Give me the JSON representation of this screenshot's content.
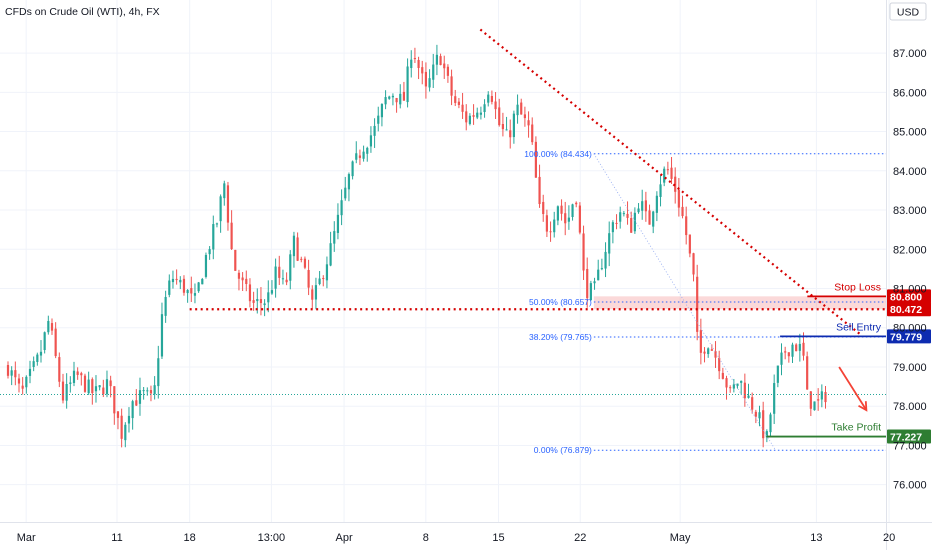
{
  "chart_data": {
    "type": "candlestick",
    "title": "CFDs on Crude Oil (WTI), 4h, FX",
    "currency": "USD",
    "ylim": [
      75.1,
      88.2
    ],
    "y_ticks": [
      "76.000",
      "77.000",
      "78.000",
      "79.000",
      "80.000",
      "81.000",
      "82.000",
      "83.000",
      "84.000",
      "85.000",
      "86.000",
      "87.000"
    ],
    "x_ticks": [
      "Mar",
      "11",
      "18",
      "13:00",
      "Apr",
      "8",
      "15",
      "22",
      "May",
      "13",
      "20"
    ],
    "x_range": [
      0,
      96
    ],
    "x_tick_positions": [
      2,
      12,
      20,
      29,
      37,
      46,
      54,
      63,
      74,
      89,
      97
    ],
    "trend_line": {
      "from": [
        52,
        87.6
      ],
      "to": [
        94,
        79.8
      ]
    },
    "support_line": {
      "from": [
        20,
        80.472
      ],
      "to": [
        100.5,
        80.472
      ]
    },
    "zone": {
      "low": 80.472,
      "high": 80.8
    },
    "fib_levels": [
      {
        "label": "100.00% (84.434)",
        "price": 84.434,
        "from": 64.5
      },
      {
        "label": "50.00% (80.657)",
        "price": 80.657,
        "from": 64.5
      },
      {
        "label": "38.20% (79.765)",
        "price": 79.765,
        "from": 64.5
      },
      {
        "label": "0.00% (76.879)",
        "price": 76.879,
        "from": 64.5
      }
    ],
    "levels": [
      {
        "name": "Stop Loss",
        "price": 80.8,
        "tag": "80.800",
        "color": "#d50000",
        "from": 88
      },
      {
        "name": "",
        "price": 80.472,
        "tag": "80.472",
        "color": "#d50000",
        "from": 100.5
      },
      {
        "name": "Sell Entry",
        "price": 79.779,
        "tag": "79.779",
        "color": "#0d2bb0",
        "from": 85
      },
      {
        "name": "Take Profit",
        "price": 77.227,
        "tag": "77.227",
        "color": "#2e7d32",
        "from": 83.5
      }
    ],
    "current_price": 78.3,
    "arrow": {
      "from": [
        91.5,
        79.0
      ],
      "to": [
        94.5,
        77.9
      ]
    },
    "waypoints": [
      [
        0,
        79.0
      ],
      [
        1.5,
        78.3
      ],
      [
        3.5,
        79.3
      ],
      [
        4.5,
        80.2
      ],
      [
        6,
        78.2
      ],
      [
        7.5,
        78.8
      ],
      [
        9.5,
        78.3
      ],
      [
        11,
        78.6
      ],
      [
        12.5,
        77.3
      ],
      [
        13.5,
        78.1
      ],
      [
        15,
        78.3
      ],
      [
        16,
        78.1
      ],
      [
        17,
        80.4
      ],
      [
        18,
        81.3
      ],
      [
        19.5,
        81.0
      ],
      [
        20.5,
        80.6
      ],
      [
        22,
        82.0
      ],
      [
        23,
        82.7
      ],
      [
        23.8,
        83.7
      ],
      [
        24.8,
        81.6
      ],
      [
        26,
        81.0
      ],
      [
        27,
        80.6
      ],
      [
        28.5,
        80.7
      ],
      [
        29.5,
        81.4
      ],
      [
        30.5,
        81.0
      ],
      [
        31.5,
        82.2
      ],
      [
        32.5,
        81.5
      ],
      [
        33.5,
        80.6
      ],
      [
        34.5,
        81.3
      ],
      [
        35.5,
        82.0
      ],
      [
        36.5,
        82.9
      ],
      [
        37.5,
        83.8
      ],
      [
        39,
        84.6
      ],
      [
        40.5,
        85.1
      ],
      [
        41.5,
        85.8
      ],
      [
        42.5,
        86.0
      ],
      [
        43.5,
        85.7
      ],
      [
        44.5,
        87.2
      ],
      [
        46,
        86.0
      ],
      [
        47.5,
        87.0
      ],
      [
        49,
        85.8
      ],
      [
        50.5,
        85.3
      ],
      [
        52,
        85.6
      ],
      [
        53,
        86.2
      ],
      [
        54,
        85.2
      ],
      [
        55,
        84.8
      ],
      [
        56,
        85.6
      ],
      [
        57.5,
        85.0
      ],
      [
        58.5,
        83.0
      ],
      [
        59.5,
        82.5
      ],
      [
        60.5,
        83.2
      ],
      [
        61.5,
        82.6
      ],
      [
        62.5,
        83.5
      ],
      [
        63.5,
        81.0
      ],
      [
        64.5,
        80.9
      ],
      [
        65.5,
        81.8
      ],
      [
        66.5,
        82.6
      ],
      [
        67.5,
        83.0
      ],
      [
        68.5,
        82.5
      ],
      [
        69.5,
        83.3
      ],
      [
        70.5,
        82.6
      ],
      [
        71.5,
        83.6
      ],
      [
        72.5,
        84.1
      ],
      [
        73.5,
        83.5
      ],
      [
        74.5,
        82.6
      ],
      [
        75.5,
        81.2
      ],
      [
        76,
        79.2
      ],
      [
        77,
        79.7
      ],
      [
        78.5,
        79.0
      ],
      [
        79.5,
        78.3
      ],
      [
        80.5,
        78.7
      ],
      [
        81.5,
        78.2
      ],
      [
        82.5,
        77.8
      ],
      [
        83.5,
        77.1
      ],
      [
        84.5,
        78.7
      ],
      [
        85.5,
        79.4
      ],
      [
        86.5,
        79.6
      ],
      [
        87.5,
        79.4
      ],
      [
        88,
        78.2
      ],
      [
        89,
        78.0
      ],
      [
        90,
        78.3
      ]
    ]
  }
}
